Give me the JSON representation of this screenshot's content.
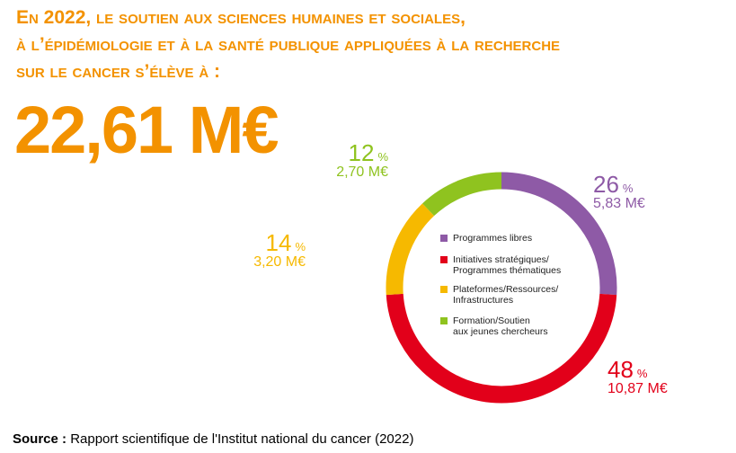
{
  "chart_data": {
    "type": "donut",
    "title_lines": [
      "En 2022, le soutien aux sciences humaines et sociales,",
      "à l’épidémiologie et à la santé publique appliquées à la recherche",
      "sur le cancer s’élève à  :"
    ],
    "headline": "22,61 M€",
    "categories": [
      "Programmes libres",
      "Initiatives stratégiques/\nProgrammes thématiques",
      "Plateformes/Ressources/\nInfrastructures",
      "Formation/Soutien\naux jeunes chercheurs"
    ],
    "values": [
      26,
      48,
      14,
      12
    ],
    "unit": "%",
    "amounts": [
      5.83,
      10.87,
      3.2,
      2.7
    ],
    "amount_labels": [
      "5,83 M€",
      "10,87 M€",
      "3,20 M€",
      "2,70 M€"
    ],
    "colors": [
      "#8e5aa6",
      "#e2001a",
      "#f6b900",
      "#8fc31f"
    ],
    "source_label": "Source :",
    "source": "Rapport scientifique de l'Institut national du cancer (2022)"
  }
}
